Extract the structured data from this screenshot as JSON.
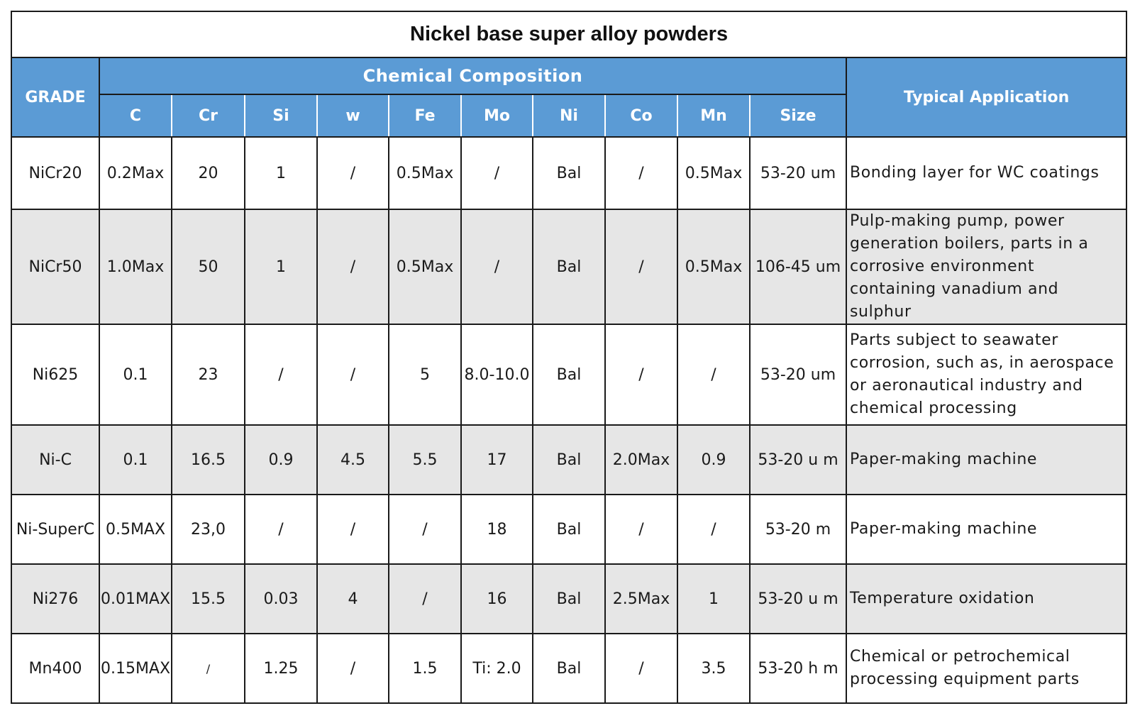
{
  "title": "Nickel base super alloy powders",
  "headers": {
    "grade": "GRADE",
    "chemical_composition": "Chemical Composition",
    "typical_application": "Typical Application",
    "columns": [
      "C",
      "Cr",
      "Si",
      "w",
      "Fe",
      "Mo",
      "Ni",
      "Co",
      "Mn",
      "Size"
    ]
  },
  "rows": [
    {
      "grade": "NiCr20",
      "values": [
        "0.2Max",
        "20",
        "1",
        "/",
        "0.5Max",
        "/",
        "Bal",
        "/",
        "0.5Max",
        "53-20 um"
      ],
      "application": "Bonding layer for WC coatings"
    },
    {
      "grade": "NiCr50",
      "values": [
        "1.0Max",
        "50",
        "1",
        "/",
        "0.5Max",
        "/",
        "Bal",
        "/",
        "0.5Max",
        "106-45 um"
      ],
      "application": "Pulp-making pump, power generation boilers, parts in a corrosive environment containing vanadium and sulphur"
    },
    {
      "grade": "Ni625",
      "values": [
        "0.1",
        "23",
        "/",
        "/",
        "5",
        "8.0-10.0",
        "Bal",
        "/",
        "/",
        "53-20 um"
      ],
      "application": "Parts subject to seawater corrosion, such as, in aerospace or aeronautical industry and chemical processing"
    },
    {
      "grade": "Ni-C",
      "values": [
        "0.1",
        "16.5",
        "0.9",
        "4.5",
        "5.5",
        "17",
        "Bal",
        "2.0Max",
        "0.9",
        "53-20 u m"
      ],
      "application": "Paper-making machine"
    },
    {
      "grade": "Ni-SuperC",
      "values": [
        "0.5MAX",
        "23,0",
        "/",
        "/",
        "/",
        "18",
        "Bal",
        "/",
        "/",
        "53-20 m"
      ],
      "application": "Paper-making machine"
    },
    {
      "grade": "Ni276",
      "values": [
        "0.01MAX",
        "15.5",
        "0.03",
        "4",
        "/",
        "16",
        "Bal",
        "2.5Max",
        "1",
        "53-20 u m"
      ],
      "application": "Temperature oxidation"
    },
    {
      "grade": "Mn400",
      "values": [
        "0.15MAX",
        "/",
        "1.25",
        "/",
        "1.5",
        "Ti: 2.0",
        "Bal",
        "/",
        "3.5",
        "53-20 h m"
      ],
      "application": "Chemical or petrochemical processing equipment parts"
    }
  ]
}
